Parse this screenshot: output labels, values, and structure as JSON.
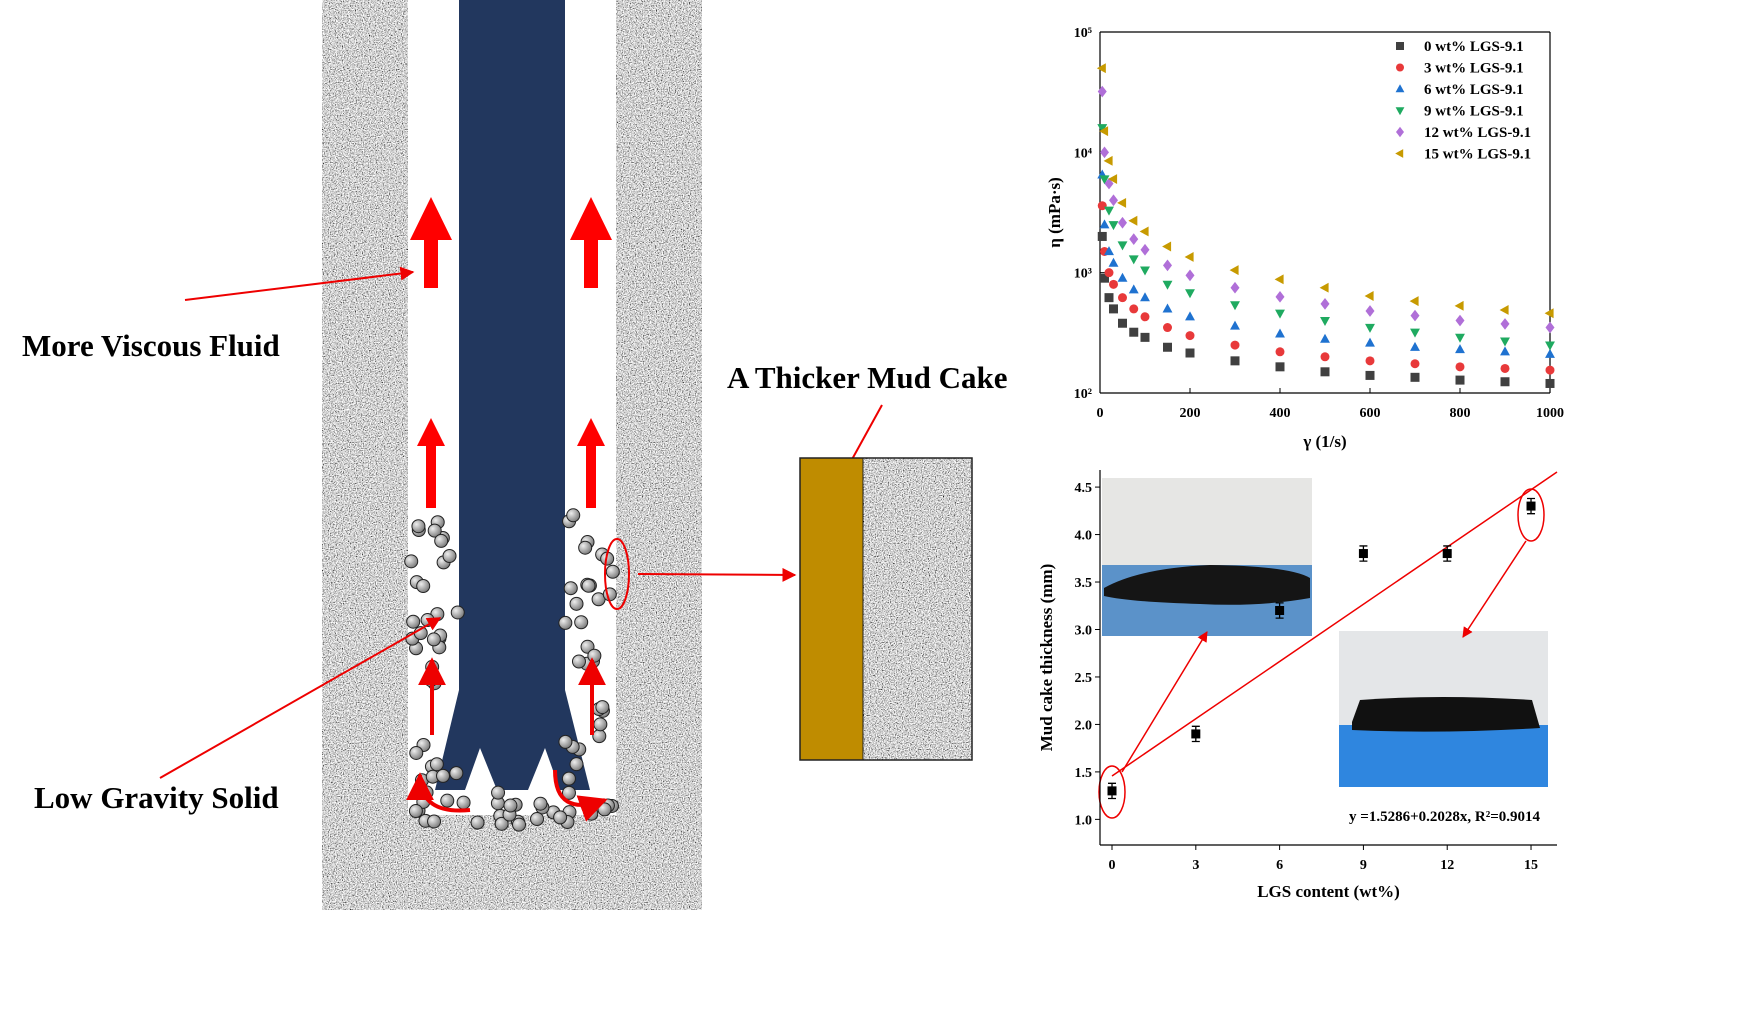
{
  "diagram": {
    "labels": [
      "More Viscous Fluid",
      "A Thicker Mud Cake",
      "Low Gravity Solid"
    ]
  },
  "chart_data": [
    {
      "type": "scatter",
      "log_y": true,
      "ylabel": "η (mPa·s)",
      "xlabel": "γ (1/s)",
      "legend": "upper right",
      "x": [
        5,
        10,
        20,
        30,
        50,
        75,
        100,
        150,
        200,
        300,
        400,
        500,
        600,
        700,
        800,
        900,
        1000
      ],
      "xlim": [
        0,
        1000
      ],
      "xticks": [
        0,
        200,
        400,
        600,
        800,
        1000
      ],
      "ylim": [
        100,
        100000
      ],
      "yticks": [
        {
          "value": 100,
          "label": "10²"
        },
        {
          "value": 1000,
          "label": "10³"
        },
        {
          "value": 10000,
          "label": "10⁴"
        },
        {
          "value": 100000,
          "label": "10⁵"
        }
      ],
      "series": [
        {
          "name": "0 wt% LGS-9.1",
          "color": "#404040",
          "marker": "square",
          "values": [
            2000,
            900,
            620,
            500,
            380,
            320,
            290,
            240,
            215,
            185,
            165,
            150,
            140,
            135,
            128,
            124,
            120
          ]
        },
        {
          "name": "3 wt% LGS-9.1",
          "color": "#e8393a",
          "marker": "circle",
          "values": [
            3600,
            1500,
            1000,
            800,
            620,
            500,
            430,
            350,
            300,
            250,
            220,
            200,
            185,
            175,
            165,
            160,
            155
          ]
        },
        {
          "name": "6 wt% LGS-9.1",
          "color": "#1f72d0",
          "marker": "triangle-up",
          "values": [
            6500,
            2500,
            1500,
            1200,
            900,
            720,
            620,
            500,
            430,
            360,
            310,
            280,
            260,
            240,
            230,
            220,
            210
          ]
        },
        {
          "name": "9 wt% LGS-9.1",
          "color": "#1faa60",
          "marker": "triangle-down",
          "values": [
            16000,
            6000,
            3300,
            2500,
            1700,
            1300,
            1050,
            800,
            680,
            540,
            460,
            400,
            350,
            320,
            290,
            270,
            250
          ]
        },
        {
          "name": "12 wt% LGS-9.1",
          "color": "#b06fd8",
          "marker": "diamond",
          "values": [
            32000,
            10000,
            5500,
            4000,
            2600,
            1900,
            1550,
            1150,
            950,
            750,
            630,
            550,
            480,
            440,
            400,
            375,
            350
          ]
        },
        {
          "name": "15 wt% LGS-9.1",
          "color": "#c79a00",
          "marker": "triangle-left",
          "values": [
            50000,
            15000,
            8500,
            6000,
            3800,
            2700,
            2200,
            1650,
            1350,
            1050,
            880,
            750,
            640,
            580,
            530,
            490,
            460
          ]
        }
      ]
    },
    {
      "type": "errorbar",
      "ylabel": "Mud cake thickness (mm)",
      "xlabel": "LGS content (wt%)",
      "annotation": "y =1.5286+0.2028x, R²=0.9014",
      "color": "#000000",
      "x": [
        0,
        3,
        6,
        9,
        12,
        15
      ],
      "values": [
        1.3,
        1.9,
        3.2,
        3.8,
        3.8,
        4.3
      ],
      "errors": [
        0.08,
        0.08,
        0.08,
        0.08,
        0.08,
        0.08
      ],
      "xlim": [
        -0.43,
        15.93
      ],
      "xticks": [
        0,
        3,
        6,
        9,
        12,
        15
      ],
      "ylim": [
        0.73,
        4.68
      ],
      "yticks": [
        {
          "value": 1,
          "label": "1.0"
        },
        1.5,
        {
          "value": 2,
          "label": "2.0"
        },
        2.5,
        {
          "value": 3,
          "label": "3.0"
        },
        3.5,
        {
          "value": 4,
          "label": "4.0"
        },
        4.5
      ]
    }
  ]
}
